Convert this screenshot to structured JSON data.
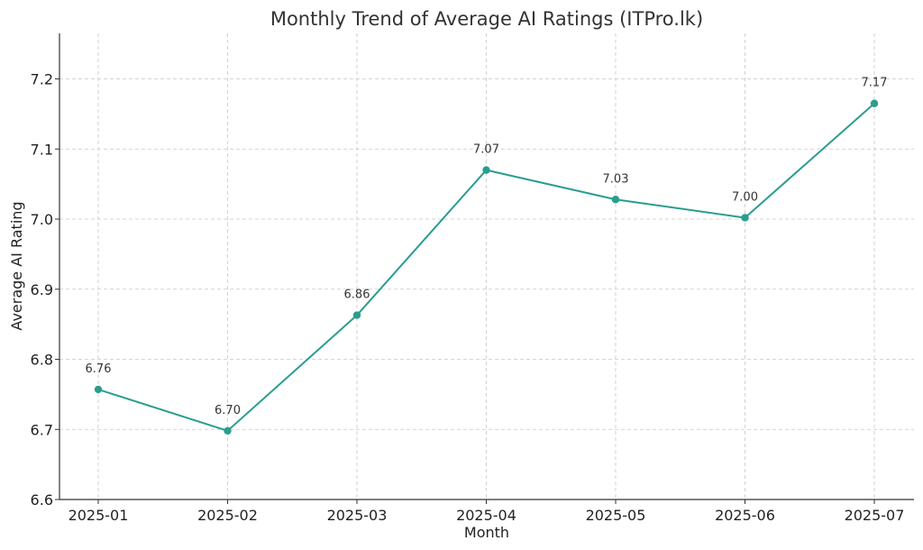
{
  "chart_data": {
    "type": "line",
    "title": "Monthly Trend of Average AI Ratings (ITPro.lk)",
    "xlabel": "Month",
    "ylabel": "Average AI Rating",
    "categories": [
      "2025-01",
      "2025-02",
      "2025-03",
      "2025-04",
      "2025-05",
      "2025-06",
      "2025-07"
    ],
    "series": [
      {
        "values": [
          6.757,
          6.698,
          6.863,
          7.07,
          7.028,
          7.002,
          7.165
        ],
        "data_labels": [
          "6.76",
          "6.70",
          "6.86",
          "7.07",
          "7.03",
          "7.00",
          "7.17"
        ]
      }
    ],
    "ylim": [
      6.6,
      7.265
    ],
    "yticks": [
      6.6,
      6.7,
      6.8,
      6.9,
      7.0,
      7.1,
      7.2
    ],
    "ytick_labels": [
      "6.6",
      "6.7",
      "6.8",
      "6.9",
      "7.0",
      "7.1",
      "7.2"
    ],
    "grid": true,
    "line_color": "#2a9d8f",
    "marker": "circle"
  }
}
